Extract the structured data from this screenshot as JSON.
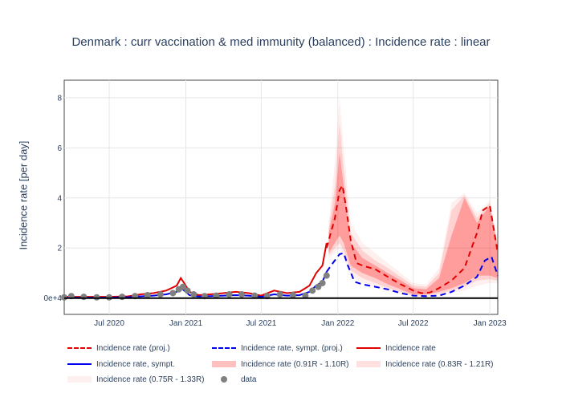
{
  "chart_data": {
    "type": "line",
    "title": "Denmark : curr vaccination & med immunity (balanced) : Incidence rate : linear",
    "ylabel": "Incidence rate [per day]",
    "xlabel": "",
    "x_range": [
      "2020-03-15",
      "2023-01-20"
    ],
    "ylim": [
      -0.65,
      8.7
    ],
    "x_ticks": [
      {
        "date": "2020-07-01",
        "label": "Jul 2020"
      },
      {
        "date": "2021-01-01",
        "label": "Jan 2021"
      },
      {
        "date": "2021-07-01",
        "label": "Jul 2021"
      },
      {
        "date": "2022-01-01",
        "label": "Jan 2022"
      },
      {
        "date": "2022-07-01",
        "label": "Jul 2022"
      },
      {
        "date": "2023-01-01",
        "label": "Jan 2023"
      }
    ],
    "y_ticks": [
      {
        "value": 0,
        "label": "0e+4"
      },
      {
        "value": 2,
        "label": "2"
      },
      {
        "value": 4,
        "label": "4"
      },
      {
        "value": 6,
        "label": "6"
      },
      {
        "value": 8,
        "label": "8"
      }
    ],
    "grid": true,
    "legend_position": "bottom",
    "series": [
      {
        "name": "Incidence rate (proj.)",
        "style": "dashed",
        "color": "#e00000",
        "x": [
          "2021-12-05",
          "2021-12-15",
          "2021-12-25",
          "2022-01-05",
          "2022-01-12",
          "2022-01-20",
          "2022-02-01",
          "2022-02-15",
          "2022-03-01",
          "2022-04-01",
          "2022-05-01",
          "2022-06-01",
          "2022-07-01",
          "2022-07-20",
          "2022-08-10",
          "2022-09-01",
          "2022-10-01",
          "2022-11-01",
          "2022-12-01",
          "2022-12-15",
          "2023-01-01",
          "2023-01-20"
        ],
        "values": [
          2.0,
          2.6,
          3.2,
          4.3,
          4.5,
          3.7,
          2.3,
          1.4,
          1.3,
          1.15,
          0.85,
          0.55,
          0.3,
          0.2,
          0.22,
          0.4,
          0.7,
          1.2,
          2.6,
          3.5,
          3.7,
          1.8
        ]
      },
      {
        "name": "Incidence rate, sympt. (proj.)",
        "style": "dashed",
        "color": "#0000ee",
        "x": [
          "2021-12-05",
          "2021-12-20",
          "2022-01-05",
          "2022-01-15",
          "2022-01-25",
          "2022-02-10",
          "2022-03-01",
          "2022-04-01",
          "2022-05-01",
          "2022-06-01",
          "2022-07-01",
          "2022-08-01",
          "2022-09-01",
          "2022-10-01",
          "2022-11-01",
          "2022-12-01",
          "2022-12-20",
          "2023-01-05",
          "2023-01-20"
        ],
        "values": [
          1.05,
          1.4,
          1.75,
          1.8,
          1.3,
          0.65,
          0.55,
          0.45,
          0.35,
          0.2,
          0.1,
          0.08,
          0.1,
          0.25,
          0.5,
          0.85,
          1.5,
          1.65,
          0.9
        ]
      },
      {
        "name": "Incidence rate",
        "style": "solid",
        "color": "#e00000",
        "x": [
          "2020-03-15",
          "2020-05-01",
          "2020-07-01",
          "2020-08-15",
          "2020-09-15",
          "2020-10-15",
          "2020-11-15",
          "2020-12-10",
          "2020-12-20",
          "2020-12-28",
          "2021-01-10",
          "2021-02-01",
          "2021-03-01",
          "2021-04-01",
          "2021-05-01",
          "2021-06-01",
          "2021-07-01",
          "2021-08-01",
          "2021-09-01",
          "2021-10-01",
          "2021-10-25",
          "2021-11-10",
          "2021-11-25",
          "2021-12-05"
        ],
        "values": [
          0.05,
          0.05,
          0.05,
          0.07,
          0.15,
          0.2,
          0.3,
          0.5,
          0.8,
          0.6,
          0.25,
          0.12,
          0.15,
          0.2,
          0.25,
          0.2,
          0.1,
          0.3,
          0.2,
          0.25,
          0.5,
          1.0,
          1.3,
          2.2
        ]
      },
      {
        "name": "Incidence rate, sympt.",
        "style": "solid",
        "color": "#0000ee",
        "x": [
          "2020-03-15",
          "2020-05-01",
          "2020-07-01",
          "2020-08-15",
          "2020-09-15",
          "2020-10-15",
          "2020-11-15",
          "2020-12-10",
          "2020-12-20",
          "2020-12-28",
          "2021-01-10",
          "2021-02-01",
          "2021-03-01",
          "2021-04-01",
          "2021-05-01",
          "2021-06-01",
          "2021-07-01",
          "2021-08-01",
          "2021-09-01",
          "2021-10-01",
          "2021-10-25",
          "2021-11-10",
          "2021-11-25",
          "2021-12-05"
        ],
        "values": [
          0.02,
          0.02,
          0.02,
          0.04,
          0.07,
          0.1,
          0.15,
          0.25,
          0.4,
          0.3,
          0.12,
          0.06,
          0.08,
          0.1,
          0.12,
          0.1,
          0.05,
          0.15,
          0.1,
          0.12,
          0.25,
          0.5,
          0.65,
          1.05
        ]
      },
      {
        "name": "Incidence rate (0.91R - 1.10R)",
        "style": "band",
        "color": "rgba(255,0,0,0.25)",
        "x": [
          "2021-12-10",
          "2021-12-25",
          "2022-01-05",
          "2022-01-15",
          "2022-02-01",
          "2022-03-01",
          "2022-04-01",
          "2022-05-01",
          "2022-06-01",
          "2022-07-01",
          "2022-08-01",
          "2022-09-01",
          "2022-10-01",
          "2022-11-01",
          "2022-12-01",
          "2023-01-01",
          "2023-01-20"
        ],
        "lower": [
          1.8,
          2.2,
          2.5,
          2.2,
          1.3,
          1.0,
          0.8,
          0.55,
          0.35,
          0.15,
          0.15,
          0.25,
          0.4,
          0.6,
          0.9,
          0.9,
          0.8
        ],
        "upper": [
          2.6,
          3.8,
          5.8,
          4.5,
          2.2,
          1.6,
          1.3,
          1.0,
          0.7,
          0.4,
          0.35,
          0.8,
          2.5,
          4.0,
          3.0,
          3.7,
          2.0
        ]
      },
      {
        "name": "Incidence rate (0.83R - 1.21R)",
        "style": "band",
        "color": "rgba(255,0,0,0.12)",
        "x": [
          "2021-12-10",
          "2021-12-25",
          "2022-01-05",
          "2022-01-15",
          "2022-02-01",
          "2022-03-01",
          "2022-04-01",
          "2022-05-01",
          "2022-06-01",
          "2022-07-01",
          "2022-08-01",
          "2022-09-01",
          "2022-10-01",
          "2022-11-01",
          "2022-12-01",
          "2023-01-01",
          "2023-01-20"
        ],
        "lower": [
          1.7,
          2.0,
          2.2,
          1.9,
          1.1,
          0.8,
          0.6,
          0.4,
          0.25,
          0.1,
          0.1,
          0.18,
          0.3,
          0.45,
          0.7,
          0.75,
          0.7
        ],
        "upper": [
          2.8,
          4.5,
          7.0,
          5.2,
          2.6,
          1.9,
          1.5,
          1.2,
          0.85,
          0.5,
          0.45,
          1.0,
          3.5,
          4.1,
          3.2,
          3.8,
          2.1
        ]
      },
      {
        "name": "Incidence rate (0.75R - 1.33R)",
        "style": "band",
        "color": "rgba(255,0,0,0.06)",
        "x": [
          "2021-12-10",
          "2021-12-25",
          "2022-01-05",
          "2022-01-15",
          "2022-02-01",
          "2022-03-01",
          "2022-04-01",
          "2022-05-01",
          "2022-06-01",
          "2022-07-01",
          "2022-08-01",
          "2022-09-01",
          "2022-10-01",
          "2022-11-01",
          "2022-12-01",
          "2023-01-01",
          "2023-01-20"
        ],
        "lower": [
          1.6,
          1.8,
          2.0,
          1.6,
          0.9,
          0.6,
          0.45,
          0.3,
          0.18,
          0.07,
          0.06,
          0.12,
          0.2,
          0.3,
          0.5,
          0.6,
          0.6
        ],
        "upper": [
          3.0,
          5.5,
          8.0,
          6.0,
          3.0,
          2.2,
          1.8,
          1.4,
          1.0,
          0.6,
          0.55,
          1.2,
          3.8,
          4.2,
          3.4,
          3.9,
          2.2
        ]
      },
      {
        "name": "data",
        "style": "markers",
        "color": "#808080",
        "x": [
          "2020-03-15",
          "2020-04-01",
          "2020-05-01",
          "2020-06-01",
          "2020-07-01",
          "2020-08-01",
          "2020-09-01",
          "2020-10-01",
          "2020-11-01",
          "2020-12-01",
          "2020-12-15",
          "2020-12-25",
          "2021-01-05",
          "2021-01-20",
          "2021-02-15",
          "2021-03-15",
          "2021-04-15",
          "2021-05-15",
          "2021-06-15",
          "2021-07-15",
          "2021-08-15",
          "2021-09-15",
          "2021-10-15",
          "2021-11-01",
          "2021-11-15",
          "2021-11-25",
          "2021-12-05"
        ],
        "values": [
          0.03,
          0.08,
          0.05,
          0.03,
          0.03,
          0.05,
          0.08,
          0.12,
          0.15,
          0.2,
          0.35,
          0.45,
          0.3,
          0.15,
          0.08,
          0.1,
          0.15,
          0.15,
          0.1,
          0.08,
          0.15,
          0.12,
          0.1,
          0.3,
          0.45,
          0.6,
          0.9
        ]
      }
    ]
  }
}
